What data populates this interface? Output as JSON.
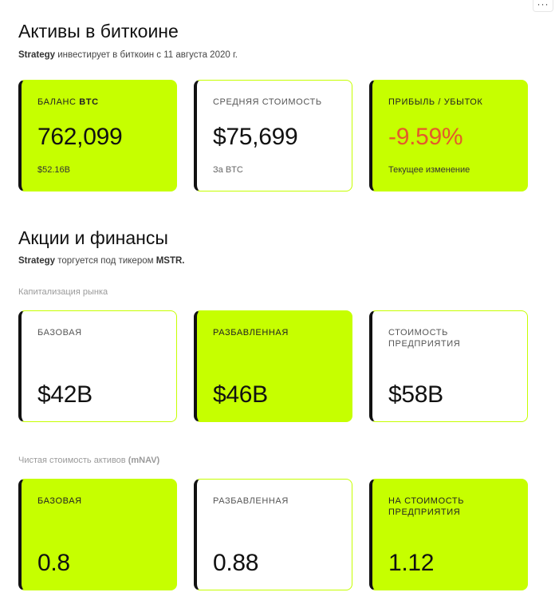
{
  "more_button": {
    "icon": "more-horizontal-icon",
    "glyph": "···"
  },
  "bitcoin_section": {
    "title": "Активы в биткоине",
    "subtitle_brand": "Strategy",
    "subtitle_text": " инвестирует в биткоин с 11 августа 2020 г.",
    "cards": [
      {
        "label": "БАЛАНС",
        "label_strong": "BTC",
        "value": "762,099",
        "foot": "$52.16B",
        "style": "lime"
      },
      {
        "label": "СРЕДНЯЯ СТОИМОСТЬ",
        "label_strong": "",
        "value": "$75,699",
        "foot": "За BTC",
        "style": "white"
      },
      {
        "label": "ПРИБЫЛЬ / УБЫТОК",
        "label_strong": "",
        "value": "-9.59%",
        "foot": "Текущее изменение",
        "style": "lime",
        "value_color": "#e45b2a"
      }
    ]
  },
  "stock_section": {
    "title": "Акции и финансы",
    "subtitle_brand": "Strategy",
    "subtitle_text": " торгуется под тикером ",
    "subtitle_ticker": "MSTR.",
    "market_cap": {
      "label": "Капитализация рынка",
      "cards": [
        {
          "label": "БАЗОВАЯ",
          "value": "$42B",
          "style": "white"
        },
        {
          "label": "РАЗБАВЛЕННАЯ",
          "value": "$46B",
          "style": "lime"
        },
        {
          "label": "СТОИМОСТЬ ПРЕДПРИЯТИЯ",
          "value": "$58B",
          "style": "white"
        }
      ]
    },
    "mnav": {
      "label": "Чистая стоимость активов ",
      "label_strong": "(mNAV)",
      "cards": [
        {
          "label": "БАЗОВАЯ",
          "value": "0.8",
          "style": "lime"
        },
        {
          "label": "РАЗБАВЛЕННАЯ",
          "value": "0.88",
          "style": "white"
        },
        {
          "label": "НА СТОИМОСТЬ ПРЕДПРИЯТИЯ",
          "value": "1.12",
          "style": "lime"
        }
      ]
    }
  },
  "colors": {
    "accent_lime": "#c6ff00",
    "card_left_border": "#111111",
    "negative": "#e45b2a"
  }
}
